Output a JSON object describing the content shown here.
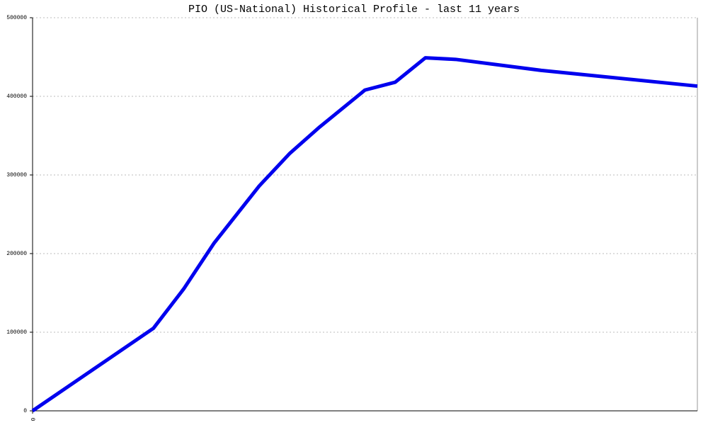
{
  "chart_data": {
    "type": "line",
    "title": "PIO (US-National) Historical Profile - last 11 years",
    "x": [
      0,
      24,
      30,
      36,
      45,
      51,
      57,
      66,
      72,
      78,
      84,
      101,
      132
    ],
    "series": [
      {
        "color": "#0000ee",
        "values": [
          0,
          105000,
          155000,
          213000,
          286000,
          327000,
          361000,
          408000,
          418000,
          449000,
          447000,
          433000,
          413000
        ]
      }
    ],
    "xlim": [
      0,
      132
    ],
    "xticks": [
      0
    ],
    "ylim": [
      0,
      500000
    ],
    "yticks": [
      0,
      100000,
      200000,
      300000,
      400000,
      500000
    ],
    "grid": true
  }
}
